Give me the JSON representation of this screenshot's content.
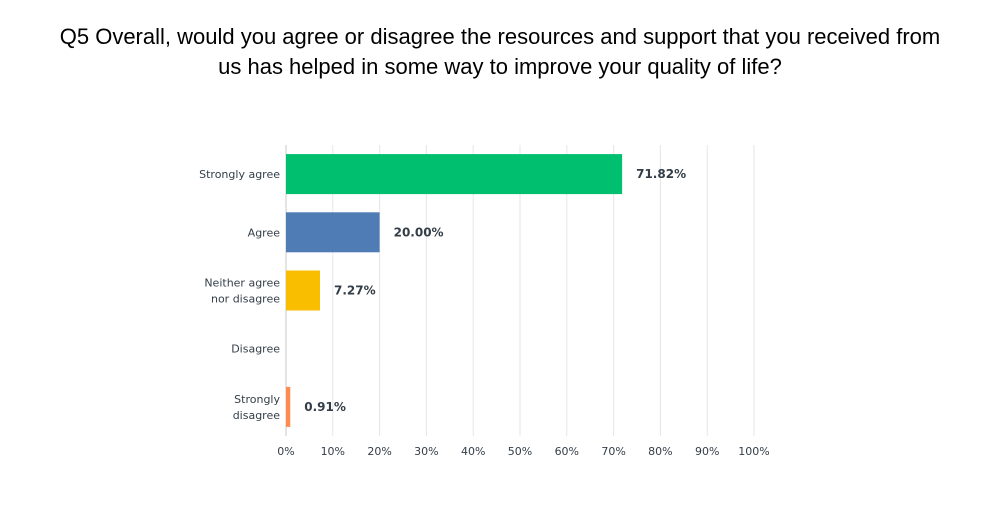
{
  "chart_data": {
    "type": "bar",
    "orientation": "horizontal",
    "title_lines": [
      "Q5 Overall, would you agree or disagree the resources and support that you received from",
      "us has helped in some way to improve your quality of life?"
    ],
    "categories": [
      [
        "Strongly agree"
      ],
      [
        "Agree"
      ],
      [
        "Neither agree",
        "nor disagree"
      ],
      [
        "Disagree"
      ],
      [
        "Strongly",
        "disagree"
      ]
    ],
    "values": [
      71.82,
      20.0,
      7.27,
      0,
      0.91
    ],
    "value_labels": [
      "71.82%",
      "20.00%",
      "7.27%",
      "",
      "0.91%"
    ],
    "colors": [
      "#00bf6f",
      "#507cb6",
      "#f9be00",
      "#6bc8cd",
      "#ff8b4f"
    ],
    "xlim": [
      0,
      100
    ],
    "xticks": [
      "0%",
      "10%",
      "20%",
      "30%",
      "40%",
      "50%",
      "60%",
      "70%",
      "80%",
      "90%",
      "100%"
    ],
    "grid": true,
    "xlabel": "",
    "ylabel": ""
  }
}
